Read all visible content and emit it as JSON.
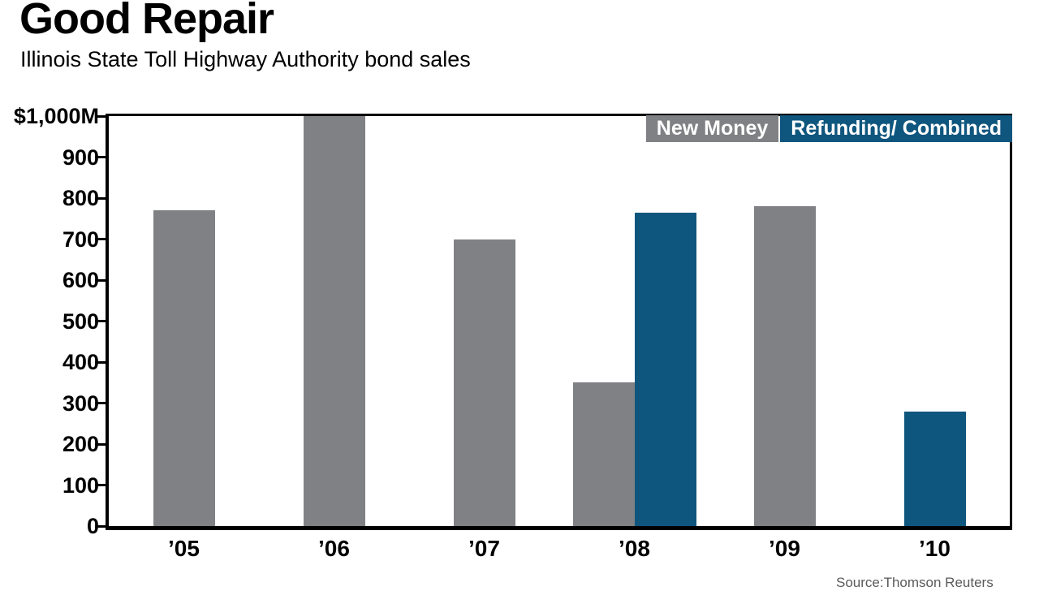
{
  "source": "Source:Thomson Reuters",
  "chart_data": {
    "type": "bar",
    "title": "Good Repair",
    "subtitle": "Illinois State Toll Highway Authority bond sales",
    "categories": [
      "’05",
      "’06",
      "’07",
      "’08",
      "’09",
      "’10"
    ],
    "series": [
      {
        "name": "New Money",
        "color": "#808184",
        "values": [
          770,
          1000,
          700,
          350,
          780,
          null
        ]
      },
      {
        "name": "Refunding/ Combined",
        "color": "#0F567E",
        "values": [
          null,
          null,
          null,
          765,
          null,
          280
        ]
      }
    ],
    "ylim": [
      0,
      1000
    ],
    "yticks": [
      {
        "label": "$1,000M",
        "value": 1000
      },
      {
        "label": "900",
        "value": 900
      },
      {
        "label": "800",
        "value": 800
      },
      {
        "label": "700",
        "value": 700
      },
      {
        "label": "600",
        "value": 600
      },
      {
        "label": "500",
        "value": 500
      },
      {
        "label": "400",
        "value": 400
      },
      {
        "label": "300",
        "value": 300
      },
      {
        "label": "200",
        "value": 200
      },
      {
        "label": "100",
        "value": 100
      },
      {
        "label": "0",
        "value": 0
      }
    ],
    "xlabel": "",
    "ylabel": "",
    "grid": false,
    "legend_position": "top-right"
  }
}
